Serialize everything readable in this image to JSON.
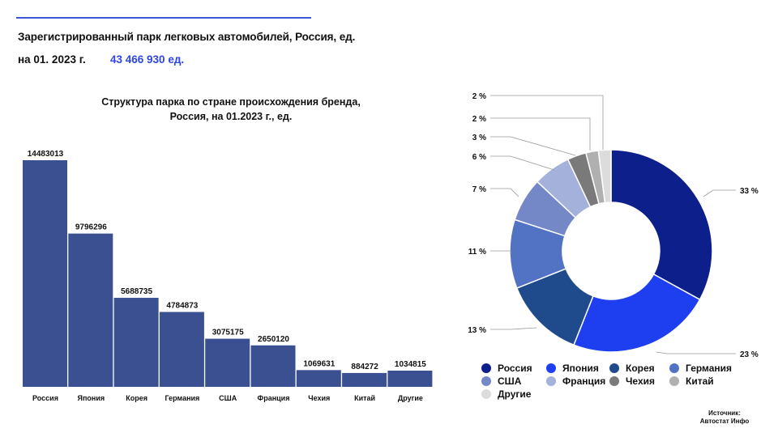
{
  "header": {
    "title": "Зарегистрированный парк легковых автомобилей, Россия, ед.",
    "date_label": "на 01. 2023 г.",
    "total": "43 466 930 ед."
  },
  "source": {
    "label": "Источник:",
    "name": "Автостат Инфо"
  },
  "colors": {
    "bar": "#3a5090",
    "accent": "#2d45e6",
    "line": "#3b55d9"
  },
  "chart_data": [
    {
      "type": "bar",
      "title_line1": "Структура парка по стране происхождения бренда,",
      "title_line2": "Россия, на 01.2023 г., ед.",
      "categories": [
        "Россия",
        "Япония",
        "Корея",
        "Германия",
        "США",
        "Франция",
        "Чехия",
        "Китай",
        "Другие"
      ],
      "values": [
        14483013,
        9796296,
        5688735,
        4784873,
        3075175,
        2650120,
        1069631,
        884272,
        1034815
      ],
      "ylim": [
        0,
        14483013
      ],
      "grid": false
    },
    {
      "type": "pie",
      "donut": true,
      "labels": [
        "Россия",
        "Япония",
        "Корея",
        "Германия",
        "США",
        "Франция",
        "Чехия",
        "Китай",
        "Другие"
      ],
      "values": [
        33,
        23,
        13,
        11,
        7,
        6,
        3,
        2,
        2
      ],
      "value_labels": [
        "33 %",
        "23 %",
        "13 %",
        "11 %",
        "7 %",
        "6 %",
        "3 %",
        "2 %",
        "2 %"
      ],
      "colors": [
        "#0d1f8a",
        "#1e3ff0",
        "#1f4a8c",
        "#5272c4",
        "#7488c8",
        "#a3b1db",
        "#7a7a7a",
        "#b0b0b0",
        "#dcdcdc"
      ],
      "legend": "bottom"
    }
  ]
}
